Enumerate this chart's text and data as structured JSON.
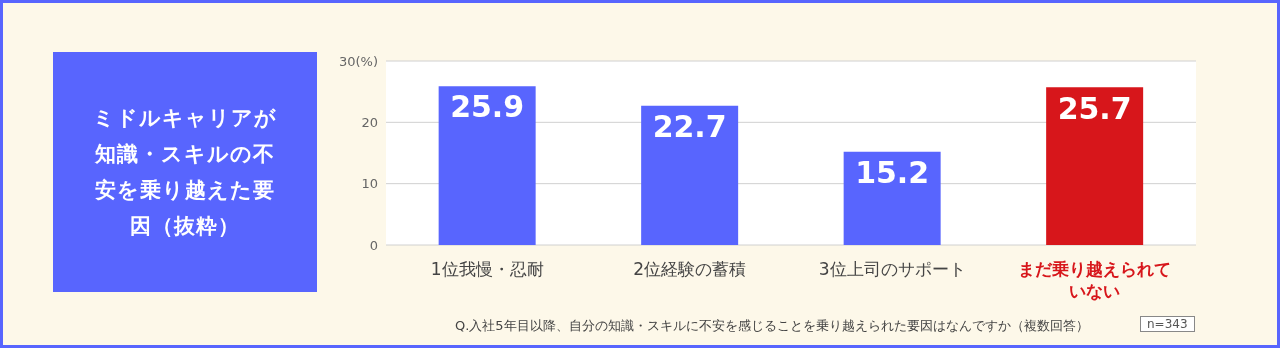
{
  "chart_data": {
    "type": "bar",
    "title": "ミドルキャリアが知識・スキルの不安を乗り越えた要因（抜粋）",
    "categories": [
      "1位我慢・忍耐",
      "2位経験の蓄積",
      "3位上司のサポート",
      "まだ乗り越えられていない"
    ],
    "values": [
      25.9,
      22.7,
      15.2,
      25.7
    ],
    "colors": [
      "#5865fe",
      "#5865fe",
      "#5865fe",
      "#d7161b"
    ],
    "ylim": [
      0,
      30
    ],
    "yticks": [
      0,
      10,
      20,
      {
        "value": 30,
        "label": "30(%)"
      }
    ],
    "grid": "y",
    "data_labels": true,
    "annotations": [
      "Q.入社5年目以降、自分の知識・スキルに不安を感じることを乗り越えられた要因はなんですか（複数回答）",
      "n=343"
    ]
  }
}
